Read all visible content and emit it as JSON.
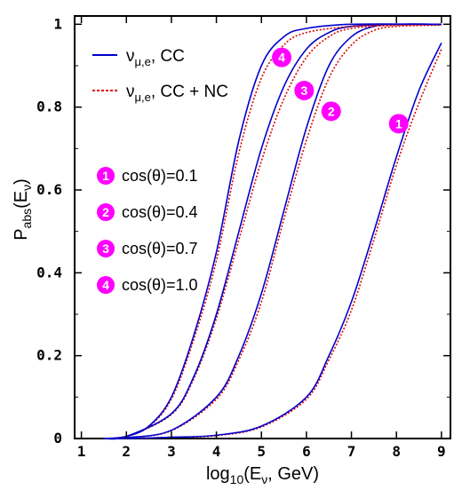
{
  "chart_data": {
    "type": "line",
    "xlabel": {
      "base": "log",
      "sub1": "10",
      "mid": "(E",
      "sub2": "ν",
      "tail": ", GeV)"
    },
    "ylabel": {
      "base": "P",
      "sub1": "abs",
      "mid": "(E",
      "sub2": "ν",
      "tail": ")"
    },
    "xlim": [
      0.85,
      9.2
    ],
    "ylim": [
      0,
      1.02
    ],
    "x_ticks": [
      "1",
      "2",
      "3",
      "4",
      "5",
      "6",
      "7",
      "8",
      "9"
    ],
    "y_ticks": [
      "0",
      "0.2",
      "0.4",
      "0.6",
      "0.8",
      "1"
    ],
    "legend": {
      "position": "top-left",
      "entries": [
        {
          "sym": "ν",
          "sub": "μ,e",
          "text": ", CC",
          "style": "solid",
          "color": "#0000cc"
        },
        {
          "sym": "ν",
          "sub": "μ,e",
          "text": ", CC + NC",
          "style": "dotted",
          "color": "#dd0000"
        }
      ]
    },
    "annotations": [
      {
        "num": "1",
        "label": "cos(θ)=0.1"
      },
      {
        "num": "2",
        "label": "cos(θ)=0.4"
      },
      {
        "num": "3",
        "label": "cos(θ)=0.7"
      },
      {
        "num": "4",
        "label": "cos(θ)=1.0"
      }
    ],
    "curve_markers": [
      {
        "num": "1",
        "x": 8.05,
        "y": 0.76
      },
      {
        "num": "2",
        "x": 6.55,
        "y": 0.79
      },
      {
        "num": "3",
        "x": 5.95,
        "y": 0.84
      },
      {
        "num": "4",
        "x": 5.45,
        "y": 0.92
      }
    ],
    "series": [
      {
        "name": "1",
        "cc": [
          [
            1.5,
            0
          ],
          [
            2,
            0
          ],
          [
            3,
            0.003
          ],
          [
            4,
            0.008
          ],
          [
            5,
            0.03
          ],
          [
            6,
            0.1
          ],
          [
            6.5,
            0.2
          ],
          [
            7,
            0.33
          ],
          [
            7.5,
            0.5
          ],
          [
            8,
            0.68
          ],
          [
            8.5,
            0.84
          ],
          [
            9,
            0.955
          ]
        ],
        "ccnc": [
          [
            1.5,
            0
          ],
          [
            2,
            0
          ],
          [
            3,
            0.003
          ],
          [
            4,
            0.007
          ],
          [
            5,
            0.028
          ],
          [
            6,
            0.095
          ],
          [
            6.5,
            0.19
          ],
          [
            7,
            0.31
          ],
          [
            7.5,
            0.48
          ],
          [
            8,
            0.66
          ],
          [
            8.5,
            0.81
          ],
          [
            9,
            0.94
          ]
        ]
      },
      {
        "name": "2",
        "cc": [
          [
            1.5,
            0
          ],
          [
            2,
            0.002
          ],
          [
            3,
            0.02
          ],
          [
            4,
            0.1
          ],
          [
            4.5,
            0.2
          ],
          [
            5,
            0.35
          ],
          [
            5.5,
            0.55
          ],
          [
            6,
            0.75
          ],
          [
            6.5,
            0.9
          ],
          [
            7,
            0.97
          ],
          [
            7.5,
            0.995
          ],
          [
            8,
            1
          ],
          [
            9,
            1
          ]
        ],
        "ccnc": [
          [
            1.5,
            0
          ],
          [
            2,
            0.002
          ],
          [
            3,
            0.019
          ],
          [
            4,
            0.095
          ],
          [
            4.5,
            0.19
          ],
          [
            5,
            0.33
          ],
          [
            5.5,
            0.53
          ],
          [
            6,
            0.72
          ],
          [
            6.5,
            0.87
          ],
          [
            7,
            0.95
          ],
          [
            7.5,
            0.985
          ],
          [
            8,
            0.995
          ],
          [
            9,
            0.998
          ]
        ]
      },
      {
        "name": "3",
        "cc": [
          [
            1.5,
            0
          ],
          [
            2,
            0.005
          ],
          [
            3,
            0.06
          ],
          [
            3.5,
            0.15
          ],
          [
            4,
            0.3
          ],
          [
            4.5,
            0.5
          ],
          [
            5,
            0.7
          ],
          [
            5.5,
            0.85
          ],
          [
            6,
            0.94
          ],
          [
            6.5,
            0.98
          ],
          [
            7,
            0.995
          ],
          [
            8,
            1
          ],
          [
            9,
            1
          ]
        ],
        "ccnc": [
          [
            1.5,
            0
          ],
          [
            2,
            0.005
          ],
          [
            3,
            0.058
          ],
          [
            3.5,
            0.145
          ],
          [
            4,
            0.29
          ],
          [
            4.5,
            0.48
          ],
          [
            5,
            0.67
          ],
          [
            5.5,
            0.82
          ],
          [
            6,
            0.92
          ],
          [
            6.5,
            0.97
          ],
          [
            7,
            0.99
          ],
          [
            8,
            0.998
          ],
          [
            9,
            0.999
          ]
        ]
      },
      {
        "name": "4",
        "cc": [
          [
            1.5,
            0
          ],
          [
            2,
            0.005
          ],
          [
            2.5,
            0.03
          ],
          [
            3,
            0.1
          ],
          [
            3.5,
            0.25
          ],
          [
            4,
            0.45
          ],
          [
            4.5,
            0.72
          ],
          [
            5,
            0.9
          ],
          [
            5.5,
            0.97
          ],
          [
            6,
            0.99
          ],
          [
            7,
            1
          ],
          [
            9,
            1
          ]
        ],
        "ccnc": [
          [
            1.5,
            0
          ],
          [
            2,
            0.005
          ],
          [
            2.5,
            0.029
          ],
          [
            3,
            0.095
          ],
          [
            3.5,
            0.24
          ],
          [
            4,
            0.43
          ],
          [
            4.5,
            0.69
          ],
          [
            5,
            0.87
          ],
          [
            5.5,
            0.95
          ],
          [
            6,
            0.98
          ],
          [
            7,
            0.995
          ],
          [
            8,
            0.999
          ],
          [
            9,
            1
          ]
        ]
      }
    ],
    "grid": false
  }
}
